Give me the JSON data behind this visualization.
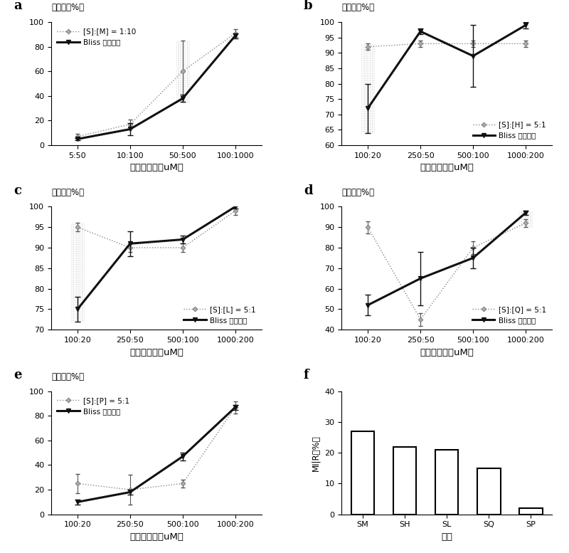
{
  "panel_a": {
    "label": "a",
    "title": "抑制率（%）",
    "xlabel": "剂量和比率（uM）",
    "xtick_labels": [
      "5:50",
      "10:100",
      "50:500",
      "100:1000"
    ],
    "ylim": [
      0,
      100
    ],
    "yticks": [
      0,
      20,
      40,
      60,
      80,
      100
    ],
    "legend1": "[S]:[M] = 1:10",
    "legend2": "Bliss 加和效果",
    "observed": [
      7,
      17,
      60,
      91
    ],
    "observed_err": [
      2,
      4,
      25,
      3
    ],
    "bliss": [
      5,
      13,
      38,
      89
    ],
    "bliss_err": [
      1,
      5,
      3,
      2
    ],
    "legend_loc": "upper left",
    "error_x_idx": 2
  },
  "panel_b": {
    "label": "b",
    "title": "抑制率（%）",
    "xlabel": "剂量和比率（uM）",
    "xtick_labels": [
      "100:20",
      "250:50",
      "500:100",
      "1000:200"
    ],
    "ylim": [
      60,
      100
    ],
    "yticks": [
      60,
      65,
      70,
      75,
      80,
      85,
      90,
      95,
      100
    ],
    "legend1": "[S]:[H] = 5:1",
    "legend2": "Bliss 加和效果",
    "observed": [
      92,
      93,
      93,
      93
    ],
    "observed_err": [
      1,
      1,
      1,
      1
    ],
    "bliss": [
      72,
      97,
      89,
      99
    ],
    "bliss_err": [
      8,
      1,
      10,
      1
    ],
    "legend_loc": "lower right",
    "error_x_idx": 0
  },
  "panel_c": {
    "label": "c",
    "title": "抑制率（%）",
    "xlabel": "剂量和比率（uM）",
    "xtick_labels": [
      "100:20",
      "250:50",
      "500:100",
      "1000:200"
    ],
    "ylim": [
      70,
      100
    ],
    "yticks": [
      70,
      75,
      80,
      85,
      90,
      95,
      100
    ],
    "legend1": "[S]:[L] = 5:1",
    "legend2": "Bliss 加和效果",
    "observed": [
      95,
      90,
      90,
      99
    ],
    "observed_err": [
      1,
      1,
      1,
      1
    ],
    "bliss": [
      75,
      91,
      92,
      100
    ],
    "bliss_err": [
      3,
      3,
      1,
      0.5
    ],
    "legend_loc": "lower right",
    "error_x_idx": 0
  },
  "panel_d": {
    "label": "d",
    "title": "抑制率（%）",
    "xlabel": "剂量和比率（uM）",
    "xtick_labels": [
      "100:20",
      "250:50",
      "500:100",
      "1000:200"
    ],
    "ylim": [
      40,
      100
    ],
    "yticks": [
      40,
      50,
      60,
      70,
      80,
      90,
      100
    ],
    "legend1": "[S]:[Q] = 5:1",
    "legend2": "Bliss 加和效果",
    "observed": [
      90,
      45,
      80,
      92
    ],
    "observed_err": [
      3,
      3,
      3,
      2
    ],
    "bliss": [
      52,
      65,
      75,
      97
    ],
    "bliss_err": [
      5,
      13,
      5,
      1
    ],
    "legend_loc": "lower right",
    "error_x_idx": 3
  },
  "panel_e": {
    "label": "e",
    "title": "抑制率（%）",
    "xlabel": "剂量和比率（uM）",
    "xtick_labels": [
      "100:20",
      "250:50",
      "500:100",
      "1000:200"
    ],
    "ylim": [
      0,
      100
    ],
    "yticks": [
      0,
      20,
      40,
      60,
      80,
      100
    ],
    "legend1": "[S]:[P] = 5:1",
    "legend2": "Bliss 加和效果",
    "observed": [
      25,
      20,
      25,
      87
    ],
    "observed_err": [
      8,
      12,
      3,
      5
    ],
    "bliss": [
      10,
      18,
      47,
      87
    ],
    "bliss_err": [
      2,
      2,
      3,
      2
    ],
    "legend_loc": "upper left",
    "error_x_idx": -1
  },
  "panel_f": {
    "label": "f",
    "xlabel": "药对",
    "ylabel": "MI|R（%）",
    "categories": [
      "SM",
      "SH",
      "SL",
      "SQ",
      "SP"
    ],
    "values": [
      27,
      22,
      21,
      15,
      2
    ],
    "bar_color": "#ffffff",
    "bar_edge": "#000000",
    "ylim": [
      0,
      40
    ],
    "yticks": [
      0,
      10,
      20,
      30,
      40
    ]
  }
}
